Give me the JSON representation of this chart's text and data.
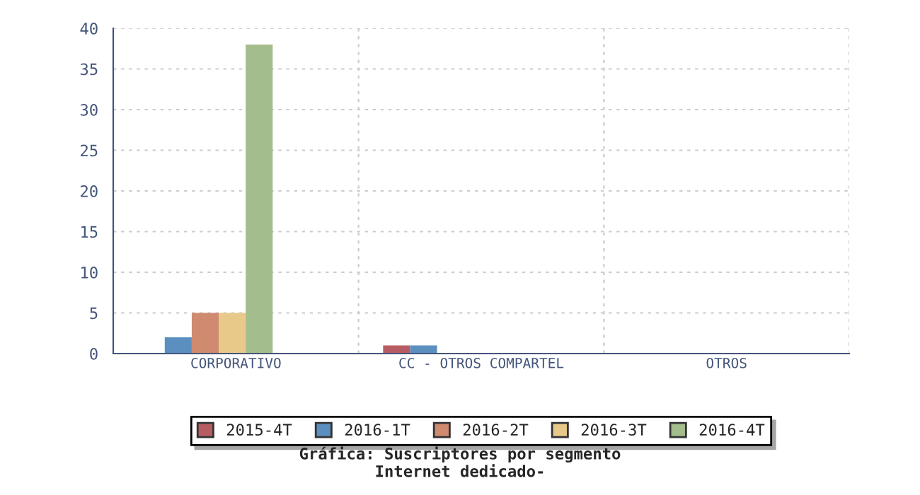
{
  "chart_data": {
    "type": "bar",
    "title": "Gráfica: Suscriptores por segmento\nInternet dedicado-",
    "categories": [
      "CORPORATIVO",
      "CC - OTROS COMPARTEL",
      "OTROS"
    ],
    "series": [
      {
        "name": "2015-4T",
        "color": "#b85c63",
        "values": [
          0,
          1,
          0
        ]
      },
      {
        "name": "2016-1T",
        "color": "#5b8fc0",
        "values": [
          2,
          1,
          0
        ]
      },
      {
        "name": "2016-2T",
        "color": "#d08a70",
        "values": [
          5,
          0,
          0
        ]
      },
      {
        "name": "2016-3T",
        "color": "#e8c98a",
        "values": [
          5,
          0,
          0
        ]
      },
      {
        "name": "2016-4T",
        "color": "#a3bd8c",
        "values": [
          38,
          0,
          0
        ]
      }
    ],
    "ylim": [
      0,
      40
    ],
    "yticks": [
      0,
      5,
      10,
      15,
      20,
      25,
      30,
      35,
      40
    ],
    "grid": true,
    "legend": "bottom"
  }
}
